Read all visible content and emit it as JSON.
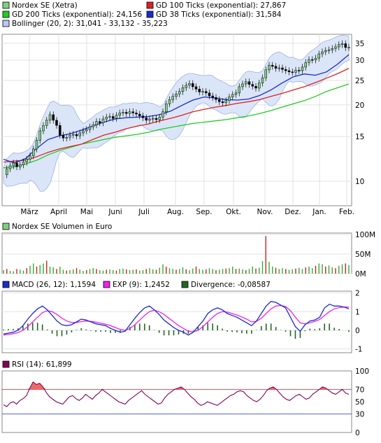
{
  "legend_main": [
    {
      "label": "Nordex SE (Xetra)",
      "color": "#7fd17f"
    },
    {
      "label": "GD 100 Ticks (exponential): 27,867",
      "color": "#e02020"
    },
    {
      "label": "GD 200 Ticks (exponential): 24,156",
      "color": "#22cc22"
    },
    {
      "label": "GD 38 Ticks (exponential): 31,584",
      "color": "#1a2bd0"
    },
    {
      "label": "Bollinger (20, 2): 31,041 - 33,132 - 35,223",
      "color": "#b8c8ee"
    }
  ],
  "legend_volume": {
    "label": "Nordex SE Volumen in Euro",
    "color": "#7fd17f"
  },
  "legend_macd": [
    {
      "label": "MACD (26, 12): 1,1594",
      "color": "#1a2bd0"
    },
    {
      "label": "EXP (9): 1,2452",
      "color": "#ee22ee"
    },
    {
      "label": "Divergence: -0,08587",
      "color": "#226622"
    }
  ],
  "legend_rsi": {
    "label": "RSI (14): 61,899",
    "color": "#880055"
  },
  "chart_data": [
    {
      "type": "line",
      "name": "price",
      "x_ticks": [
        "März",
        "April",
        "Mai",
        "Juni",
        "Juli",
        "Aug.",
        "Sep.",
        "Okt.",
        "Nov.",
        "Dez.",
        "Jan.",
        "Feb."
      ],
      "y_ticks": [
        "35",
        "30",
        "25",
        "20",
        "15",
        "10"
      ],
      "y_scale": "log",
      "ylim": [
        8,
        38
      ],
      "grid": true,
      "series_close": [
        10.6,
        11.2,
        11.5,
        11.8,
        11.4,
        11.6,
        11.9,
        12.2,
        12.6,
        13.4,
        14.5,
        15.8,
        16.6,
        17.4,
        18.3,
        17.4,
        16.6,
        15.2,
        14.8,
        14.9,
        15.2,
        15.3,
        15.1,
        15.5,
        15.8,
        16.0,
        16.4,
        16.7,
        17.2,
        17.0,
        17.6,
        17.9,
        18.0,
        17.7,
        18.2,
        18.6,
        18.7,
        18.5,
        18.8,
        18.6,
        18.4,
        18.1,
        17.8,
        17.4,
        17.6,
        17.7,
        17.5,
        17.9,
        18.8,
        20.2,
        21.0,
        21.6,
        22.1,
        22.6,
        23.4,
        23.9,
        24.3,
        23.6,
        23.1,
        22.5,
        22.6,
        22.3,
        21.7,
        21.4,
        21.0,
        20.6,
        20.4,
        20.8,
        21.5,
        22.0,
        22.3,
        23.6,
        24.2,
        24.7,
        24.1,
        23.7,
        23.3,
        24.4,
        25.6,
        27.5,
        28.7,
        28.4,
        27.9,
        28.0,
        27.6,
        27.3,
        27.0,
        26.9,
        27.4,
        27.3,
        28.2,
        29.4,
        30.2,
        30.1,
        30.6,
        31.8,
        32.4,
        32.8,
        33.0,
        33.4,
        33.9,
        34.6,
        34.9,
        33.7,
        33.8
      ],
      "gd100": [
        11.9,
        12.0,
        12.1,
        12.5,
        13.0,
        13.4,
        13.7,
        14.0,
        14.6,
        15.2,
        15.6,
        16.1,
        16.5,
        16.8,
        17.3,
        17.7,
        18.2,
        18.8,
        19.2,
        19.6,
        19.9,
        20.3,
        20.6,
        21.0,
        21.6,
        22.2,
        22.9,
        23.6,
        24.5,
        25.5,
        26.6,
        27.9
      ],
      "gd200": [
        11.3,
        11.4,
        11.7,
        12.1,
        12.7,
        13.2,
        13.6,
        14.0,
        14.3,
        14.6,
        14.9,
        15.1,
        15.3,
        15.6,
        16.0,
        16.3,
        16.6,
        16.9,
        17.1,
        17.3,
        17.5,
        17.8,
        18.1,
        18.5,
        19.0,
        19.6,
        20.2,
        20.8,
        21.6,
        22.6,
        23.4,
        24.2
      ],
      "gd38": [
        12.2,
        11.8,
        12.3,
        13.5,
        14.6,
        15.1,
        15.4,
        15.9,
        16.5,
        17.1,
        17.6,
        17.8,
        17.9,
        18.0,
        18.3,
        18.9,
        19.9,
        20.9,
        21.5,
        21.3,
        21.0,
        20.9,
        21.1,
        21.8,
        22.9,
        24.4,
        25.8,
        26.5,
        26.2,
        27.0,
        29.0,
        31.6
      ],
      "bollinger": {
        "last": [
          31.041,
          33.132,
          35.223
        ]
      }
    },
    {
      "type": "bar",
      "name": "volume",
      "y_ticks": [
        "100M",
        "50M",
        "0M"
      ],
      "ylim": [
        0,
        100
      ],
      "unit": "M EUR",
      "values": [
        9,
        12,
        7,
        6,
        12,
        10,
        8,
        14,
        20,
        26,
        18,
        22,
        26,
        33,
        18,
        16,
        12,
        18,
        10,
        8,
        9,
        11,
        14,
        10,
        7,
        9,
        12,
        14,
        12,
        9,
        8,
        10,
        11,
        9,
        8,
        12,
        13,
        11,
        9,
        10,
        11,
        8,
        9,
        12,
        14,
        11,
        10,
        15,
        24,
        18,
        14,
        12,
        10,
        12,
        16,
        11,
        9,
        13,
        18,
        12,
        10,
        11,
        14,
        12,
        9,
        10,
        12,
        13,
        14,
        18,
        12,
        13,
        11,
        9,
        12,
        18,
        13,
        15,
        32,
        96,
        30,
        18,
        15,
        12,
        14,
        12,
        10,
        11,
        13,
        15,
        12,
        16,
        18,
        14,
        20,
        26,
        24,
        18,
        21,
        16,
        14,
        20,
        24,
        26,
        22
      ]
    },
    {
      "type": "line",
      "name": "macd",
      "y_ticks": [
        "2",
        "1",
        "0",
        "-1"
      ],
      "ylim": [
        -1.2,
        2.1
      ],
      "grid": true,
      "macd": [
        -0.2,
        -0.15,
        -0.1,
        0.0,
        0.25,
        0.6,
        0.9,
        1.15,
        1.3,
        1.1,
        0.8,
        0.5,
        0.3,
        0.25,
        0.3,
        0.45,
        0.6,
        0.55,
        0.45,
        0.35,
        0.3,
        0.25,
        0.1,
        0.0,
        -0.1,
        -0.05,
        0.3,
        0.65,
        0.95,
        1.2,
        1.3,
        1.1,
        0.85,
        0.55,
        0.35,
        0.15,
        0.0,
        -0.1,
        -0.25,
        -0.1,
        0.2,
        0.5,
        0.9,
        1.1,
        1.2,
        1.1,
        0.9,
        0.8,
        0.7,
        0.55,
        0.4,
        0.25,
        0.5,
        0.9,
        1.3,
        1.55,
        1.5,
        1.35,
        1.2,
        0.7,
        0.2,
        -0.05,
        0.3,
        0.5,
        0.55,
        0.7,
        1.2,
        1.4,
        1.3,
        1.3,
        1.25,
        1.15
      ],
      "signal": [
        -0.25,
        -0.22,
        -0.18,
        -0.12,
        0.0,
        0.2,
        0.45,
        0.7,
        0.95,
        1.05,
        1.0,
        0.85,
        0.65,
        0.5,
        0.42,
        0.42,
        0.47,
        0.5,
        0.48,
        0.44,
        0.38,
        0.33,
        0.25,
        0.15,
        0.05,
        0.0,
        0.1,
        0.3,
        0.55,
        0.8,
        1.0,
        1.08,
        1.0,
        0.85,
        0.65,
        0.45,
        0.25,
        0.1,
        -0.05,
        -0.08,
        0.0,
        0.2,
        0.45,
        0.7,
        0.9,
        1.0,
        0.98,
        0.9,
        0.82,
        0.72,
        0.6,
        0.45,
        0.48,
        0.65,
        0.9,
        1.15,
        1.3,
        1.33,
        1.28,
        1.05,
        0.7,
        0.4,
        0.35,
        0.4,
        0.48,
        0.58,
        0.8,
        1.0,
        1.15,
        1.22,
        1.25,
        1.245
      ],
      "divergence_last": -0.08587
    },
    {
      "type": "line",
      "name": "rsi",
      "y_ticks": [
        "100",
        "70",
        "50",
        "30",
        "0"
      ],
      "ylim": [
        0,
        100
      ],
      "reference_lines": [
        70,
        30
      ],
      "values": [
        45,
        42,
        48,
        50,
        46,
        52,
        55,
        60,
        72,
        82,
        78,
        80,
        74,
        65,
        58,
        54,
        50,
        48,
        46,
        52,
        58,
        60,
        55,
        52,
        56,
        62,
        58,
        54,
        60,
        64,
        70,
        66,
        62,
        58,
        54,
        50,
        48,
        46,
        52,
        56,
        60,
        64,
        68,
        62,
        58,
        54,
        50,
        46,
        48,
        56,
        62,
        66,
        70,
        72,
        74,
        70,
        64,
        58,
        54,
        48,
        44,
        46,
        50,
        48,
        46,
        44,
        48,
        52,
        56,
        60,
        62,
        66,
        68,
        66,
        60,
        56,
        52,
        50,
        54,
        60,
        68,
        72,
        74,
        70,
        64,
        58,
        54,
        52,
        56,
        60,
        62,
        58,
        54,
        56,
        62,
        66,
        70,
        74,
        72,
        68,
        64,
        62,
        66,
        70,
        64,
        61.899
      ]
    }
  ]
}
